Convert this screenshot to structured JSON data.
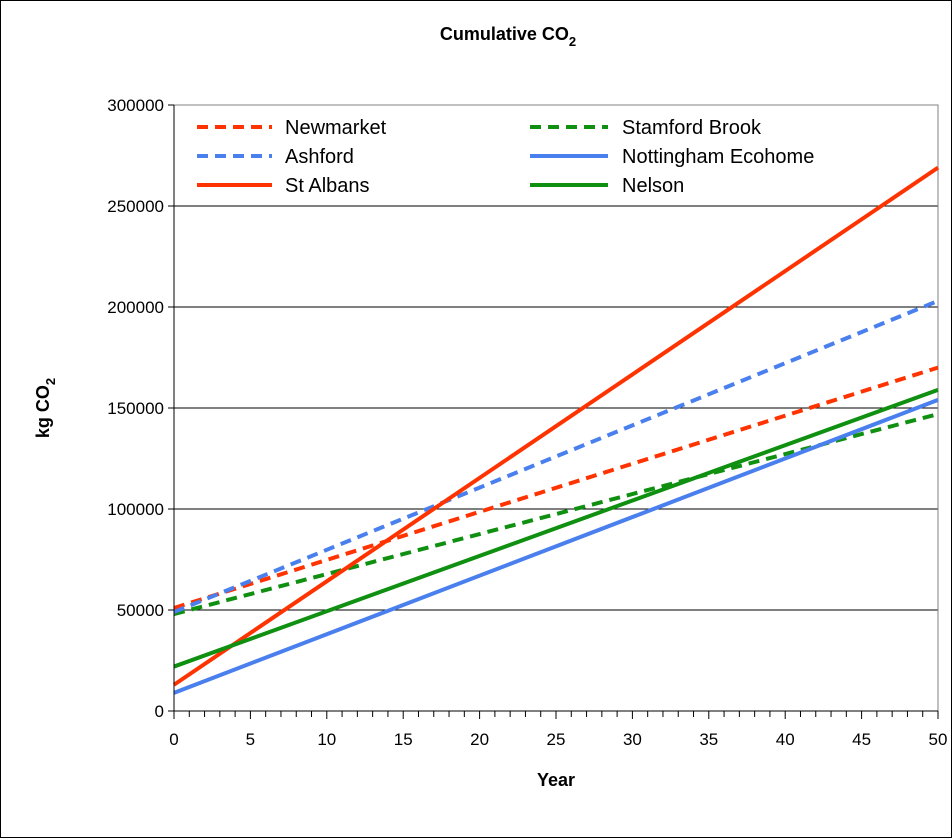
{
  "chart_data": {
    "type": "line",
    "title": "Cumulative CO",
    "title_subscript": "2",
    "xlabel": "Year",
    "ylabel": "kg CO",
    "ylabel_subscript": "2",
    "xlim": [
      0,
      50
    ],
    "ylim": [
      0,
      300000
    ],
    "x_ticks": [
      "0",
      "5",
      "10",
      "15",
      "20",
      "25",
      "30",
      "35",
      "40",
      "45",
      "50"
    ],
    "y_ticks": [
      "0",
      "50000",
      "100000",
      "150000",
      "200000",
      "250000",
      "300000"
    ],
    "grid": "horizontal",
    "legend_position": "top-left",
    "series": [
      {
        "name": "Newmarket",
        "color": "#FF3300",
        "style": "dashed",
        "x": [
          0,
          50
        ],
        "values": [
          51000,
          170000
        ]
      },
      {
        "name": "Stamford Brook",
        "color": "#109010",
        "style": "dashed",
        "x": [
          0,
          50
        ],
        "values": [
          48000,
          147000
        ]
      },
      {
        "name": "Ashford",
        "color": "#4A7FEE",
        "style": "dashed",
        "x": [
          0,
          50
        ],
        "values": [
          49000,
          203000
        ]
      },
      {
        "name": "Nottingham Ecohome",
        "color": "#4A7FEE",
        "style": "solid",
        "x": [
          0,
          50
        ],
        "values": [
          9000,
          154000
        ]
      },
      {
        "name": "St Albans",
        "color": "#FF3300",
        "style": "solid",
        "x": [
          0,
          50
        ],
        "values": [
          13000,
          269000
        ]
      },
      {
        "name": "Nelson",
        "color": "#109010",
        "style": "solid",
        "x": [
          0,
          50
        ],
        "values": [
          22000,
          159000
        ]
      }
    ]
  }
}
